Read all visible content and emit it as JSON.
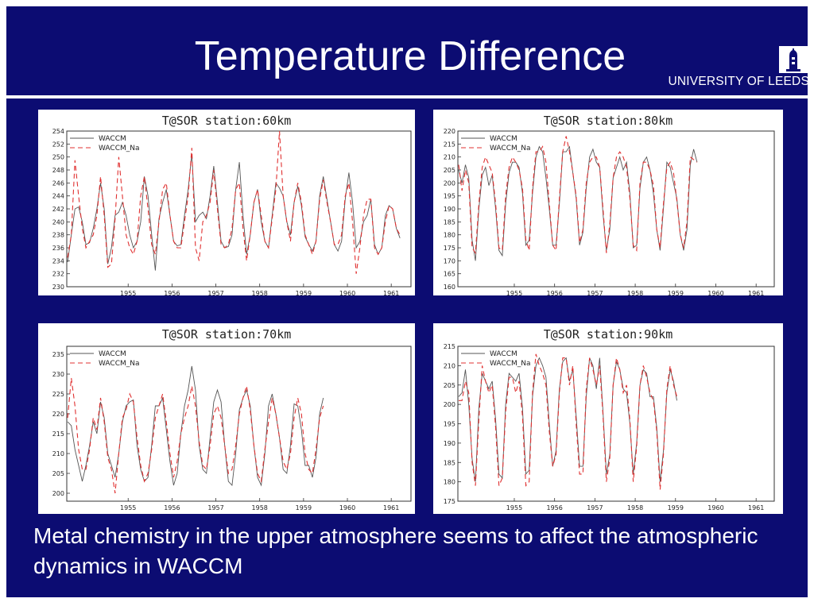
{
  "slide": {
    "title": "Temperature Difference",
    "logo_text": "UNIVERSITY OF LEEDS",
    "caption": "Metal chemistry in the upper atmosphere seems to affect the atmospheric dynamics in WACCM",
    "colors": {
      "background": "#0c0c72",
      "text": "#ffffff"
    }
  },
  "chart_data": [
    {
      "type": "line",
      "title": "T@SOR station:60km",
      "xlabel": "",
      "ylabel": "",
      "x_ticks": [
        "1955",
        "1956",
        "1957",
        "1958",
        "1959",
        "1960",
        "1961"
      ],
      "x_range": [
        1954.1,
        1961.95
      ],
      "ylim": [
        230,
        254
      ],
      "y_ticks": [
        230,
        232,
        234,
        236,
        238,
        240,
        242,
        244,
        246,
        248,
        250,
        252,
        254
      ],
      "legend_position": "top-left",
      "series": [
        {
          "name": "WACCM",
          "color": "#555555",
          "dash": "",
          "start": 1954.12,
          "step": 0.0833,
          "values": [
            233.8,
            238,
            242,
            242.3,
            240,
            236.5,
            236.8,
            239,
            242,
            246,
            242,
            233.5,
            236,
            241,
            241.5,
            243,
            241,
            238,
            236,
            237,
            240,
            247,
            244,
            238,
            232.5,
            240.5,
            243,
            245,
            241,
            237,
            236.3,
            236.5,
            241,
            245,
            250.5,
            240,
            241,
            241.5,
            240.5,
            244,
            248.6,
            243,
            237,
            236,
            236.2,
            238,
            245,
            249.2,
            241,
            235,
            238,
            243,
            245,
            240,
            237,
            236,
            241,
            246,
            245.2,
            244,
            240,
            238,
            243,
            245.5,
            242.5,
            237.7,
            236.5,
            235.5,
            237,
            244,
            247,
            243.5,
            240,
            236.5,
            235.5,
            237,
            243.5,
            247.6,
            243,
            236,
            237,
            240,
            241,
            243.5,
            236.5,
            235,
            236,
            241,
            242.5,
            242,
            239,
            237.5
          ]
        },
        {
          "name": "WACCM_Na",
          "color": "#e03030",
          "dash": "6,4",
          "start": 1954.12,
          "step": 0.0833,
          "values": [
            234.5,
            238,
            249.5,
            244,
            239,
            236,
            237,
            238,
            241,
            247,
            241,
            233,
            233.5,
            240.5,
            250,
            244,
            238,
            236,
            235,
            237,
            244,
            247,
            242,
            236.5,
            235,
            240,
            245,
            246,
            241,
            237,
            236,
            236,
            240,
            244,
            251.4,
            236,
            234,
            240,
            241,
            243,
            248,
            242,
            236.5,
            236,
            236.5,
            239,
            245,
            246,
            239,
            234,
            238,
            243,
            245,
            241,
            237,
            236,
            240.5,
            245,
            254,
            244,
            240,
            237,
            243,
            246,
            243,
            238,
            236.5,
            235,
            237,
            243.5,
            246.5,
            243,
            240,
            236.5,
            236.5,
            238,
            244,
            246,
            240,
            232,
            236,
            241,
            243.5,
            243.5,
            236,
            235,
            236,
            240,
            242.5,
            242,
            239,
            238
          ]
        }
      ]
    },
    {
      "type": "line",
      "title": "T@SOR station:80km",
      "xlabel": "",
      "ylabel": "",
      "x_ticks": [
        "1955",
        "1956",
        "1957",
        "1958",
        "1959",
        "1960",
        "1961"
      ],
      "x_range": [
        1954.1,
        1961.95
      ],
      "ylim": [
        160,
        220
      ],
      "y_ticks": [
        160,
        165,
        170,
        175,
        180,
        185,
        190,
        195,
        200,
        205,
        210,
        215,
        220
      ],
      "legend_position": "top-left",
      "series": [
        {
          "name": "WACCM",
          "color": "#555555",
          "dash": "",
          "start": 1954.12,
          "step": 0.0833,
          "values": [
            205,
            200,
            207,
            202,
            178,
            170,
            190,
            203,
            206,
            199,
            203,
            190,
            174,
            172,
            192,
            204,
            208,
            208,
            206,
            196,
            176,
            178,
            196,
            210,
            214,
            212,
            202,
            190,
            176,
            176,
            192,
            212,
            212,
            214,
            204,
            194,
            176,
            181,
            198,
            210,
            213,
            208,
            206,
            188,
            174,
            182,
            202,
            206,
            210,
            205,
            208,
            196,
            175,
            176,
            198,
            208,
            210,
            205,
            196,
            182,
            174,
            190,
            208,
            206,
            200,
            194,
            180,
            174,
            182,
            207,
            213,
            208
          ]
        },
        {
          "name": "WACCM_Na",
          "color": "#e03030",
          "dash": "6,4",
          "start": 1954.12,
          "step": 0.0833,
          "values": [
            207,
            197,
            205,
            200,
            175,
            173,
            192,
            206,
            210,
            207,
            204,
            192,
            175,
            174,
            195,
            206,
            210,
            208,
            205,
            198,
            178,
            174,
            198,
            212,
            212,
            214,
            208,
            192,
            176,
            174,
            194,
            212,
            218,
            212,
            204,
            195,
            177,
            182,
            200,
            208,
            210,
            210,
            206,
            190,
            173,
            184,
            202,
            210,
            212,
            210,
            206,
            194,
            176,
            174,
            200,
            208,
            208,
            205,
            199,
            182,
            175,
            192,
            206,
            208,
            204,
            193,
            180,
            175,
            185,
            210,
            209,
            208
          ]
        }
      ]
    },
    {
      "type": "line",
      "title": "T@SOR station:70km",
      "xlabel": "",
      "ylabel": "",
      "x_ticks": [
        "1955",
        "1956",
        "1957",
        "1958",
        "1959",
        "1960",
        "1961"
      ],
      "x_range": [
        1954.1,
        1961.95
      ],
      "ylim": [
        198,
        237
      ],
      "y_ticks": [
        200,
        205,
        210,
        215,
        220,
        225,
        230,
        235
      ],
      "legend_position": "top-left",
      "series": [
        {
          "name": "WACCM",
          "color": "#555555",
          "dash": "",
          "start": 1954.12,
          "step": 0.0833,
          "values": [
            218,
            217,
            211,
            207,
            203,
            207,
            212,
            218,
            215,
            223,
            219,
            210,
            207,
            204,
            210,
            218,
            222,
            223,
            223.5,
            212,
            206,
            203,
            204,
            212,
            222,
            222,
            224,
            216,
            208,
            202,
            205,
            215,
            222,
            226,
            232,
            226,
            212,
            206,
            205,
            214,
            223,
            226,
            223,
            212,
            203,
            202,
            210,
            221,
            224,
            226,
            222,
            212,
            204,
            202,
            210,
            222,
            225,
            220,
            214,
            206,
            205,
            212,
            222.5,
            222,
            216,
            207,
            207,
            204,
            209,
            220,
            224
          ]
        },
        {
          "name": "WACCM_Na",
          "color": "#e03030",
          "dash": "6,4",
          "start": 1954.12,
          "step": 0.0833,
          "values": [
            219,
            229,
            222,
            211,
            206,
            206,
            211,
            219,
            216,
            224,
            218,
            209,
            206,
            200,
            210,
            219,
            221,
            225,
            223,
            214,
            207,
            203,
            205,
            211,
            219,
            222,
            225,
            218,
            210,
            204,
            208,
            215,
            219,
            222,
            227,
            222,
            213,
            207,
            206,
            212,
            220,
            222,
            219,
            212,
            205,
            206,
            212,
            220,
            224,
            227,
            221,
            212,
            205,
            203,
            211,
            218,
            224,
            220,
            214,
            208,
            206,
            210,
            219,
            224,
            220,
            210,
            206,
            205,
            211,
            219,
            222
          ]
        }
      ]
    },
    {
      "type": "line",
      "title": "T@SOR station:90km",
      "xlabel": "",
      "ylabel": "",
      "x_ticks": [
        "1955",
        "1956",
        "1957",
        "1958",
        "1959",
        "1960",
        "1961"
      ],
      "x_range": [
        1954.1,
        1961.95
      ],
      "ylim": [
        175,
        215
      ],
      "y_ticks": [
        175,
        180,
        185,
        190,
        195,
        200,
        205,
        210,
        215
      ],
      "legend_position": "top-left",
      "series": [
        {
          "name": "WACCM",
          "color": "#555555",
          "dash": "",
          "start": 1954.12,
          "step": 0.0833,
          "values": [
            202,
            203,
            209,
            200,
            186,
            180,
            199,
            208,
            206,
            204,
            206,
            196,
            182,
            181,
            200,
            208,
            207,
            206,
            208,
            199,
            182,
            183,
            202,
            210,
            212,
            210,
            207,
            195,
            184,
            188,
            204,
            211,
            212,
            206,
            209,
            197,
            184,
            184,
            202,
            212,
            210,
            204,
            212,
            198,
            182,
            187,
            205,
            211,
            209,
            204,
            203,
            195,
            182,
            190,
            205,
            209,
            208,
            202,
            202,
            194,
            180,
            188,
            203,
            209,
            206,
            201
          ]
        },
        {
          "name": "WACCM_Na",
          "color": "#e03030",
          "dash": "6,4",
          "start": 1954.12,
          "step": 0.0833,
          "values": [
            201,
            201,
            206,
            203,
            185,
            179,
            196,
            210,
            206,
            203,
            205,
            194,
            179,
            181,
            198,
            207,
            207,
            203,
            206,
            197,
            179,
            180,
            203,
            213,
            210,
            208,
            205,
            193,
            184,
            187,
            203,
            212,
            212,
            205,
            210,
            195,
            182,
            182,
            204,
            212,
            209,
            205,
            210,
            197,
            180,
            186,
            205,
            212,
            209,
            203,
            205,
            196,
            180,
            189,
            205,
            210,
            207,
            203,
            201,
            193,
            178,
            187,
            204,
            210,
            205,
            202
          ]
        }
      ]
    }
  ]
}
